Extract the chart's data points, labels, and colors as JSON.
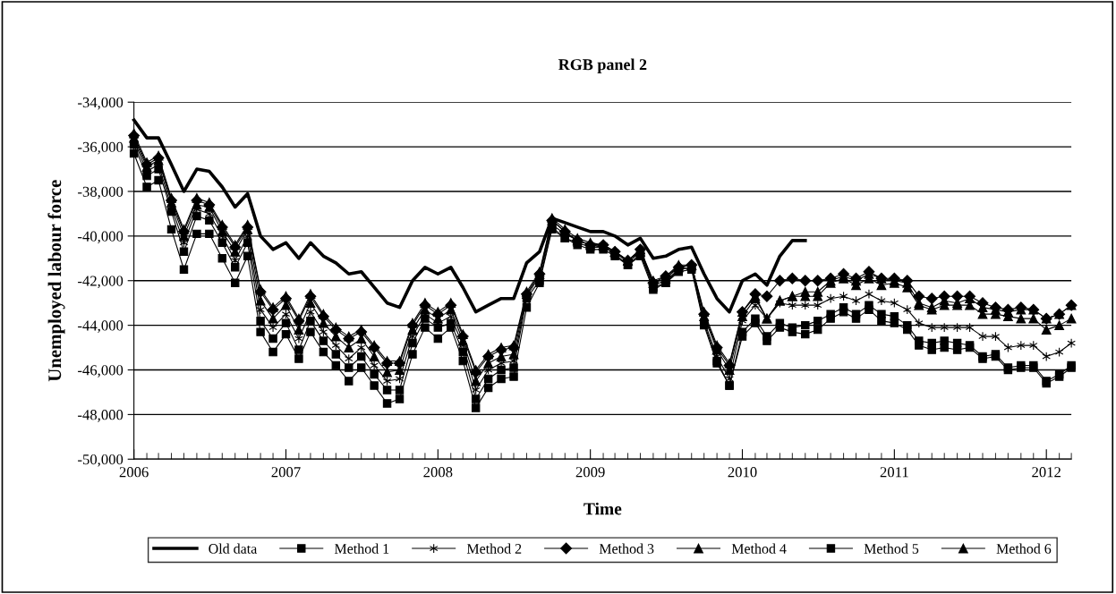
{
  "chart_data": {
    "type": "line",
    "title": "RGB panel 2",
    "xlabel": "Time",
    "ylabel": "Unemployed labour force",
    "x": [
      "2006-01",
      "2006-02",
      "2006-03",
      "2006-04",
      "2006-05",
      "2006-06",
      "2006-07",
      "2006-08",
      "2006-09",
      "2006-10",
      "2006-11",
      "2006-12",
      "2007-01",
      "2007-02",
      "2007-03",
      "2007-04",
      "2007-05",
      "2007-06",
      "2007-07",
      "2007-08",
      "2007-09",
      "2007-10",
      "2007-11",
      "2007-12",
      "2008-01",
      "2008-02",
      "2008-03",
      "2008-04",
      "2008-05",
      "2008-06",
      "2008-07",
      "2008-08",
      "2008-09",
      "2008-10",
      "2008-11",
      "2008-12",
      "2009-01",
      "2009-02",
      "2009-03",
      "2009-04",
      "2009-05",
      "2009-06",
      "2009-07",
      "2009-08",
      "2009-09",
      "2009-10",
      "2009-11",
      "2009-12",
      "2010-01",
      "2010-02",
      "2010-03",
      "2010-04",
      "2010-05",
      "2010-06",
      "2010-07",
      "2010-08",
      "2010-09",
      "2010-10",
      "2010-11",
      "2010-12",
      "2011-01",
      "2011-02",
      "2011-03",
      "2011-04",
      "2011-05",
      "2011-06",
      "2011-07",
      "2011-08",
      "2011-09",
      "2011-10",
      "2011-11",
      "2011-12",
      "2012-01",
      "2012-02",
      "2012-03"
    ],
    "series": [
      {
        "name": "Old data",
        "color": "#000000",
        "marker": "none",
        "values": [
          -34800,
          -35600,
          -35600,
          -36800,
          -38000,
          -37000,
          -37100,
          -37800,
          -38700,
          -38100,
          -40000,
          -40600,
          -40300,
          -41000,
          -40300,
          -40900,
          -41200,
          -41700,
          -41600,
          -42300,
          -43000,
          -43200,
          -42000,
          -41400,
          -41700,
          -41400,
          -42300,
          -43400,
          -43100,
          -42800,
          -42800,
          -41200,
          -40700,
          -39200,
          -39400,
          -39600,
          -39800,
          -39800,
          -40000,
          -40400,
          -40100,
          -41000,
          -40900,
          -40600,
          -40500,
          -41700,
          -42800,
          -43400,
          -42000,
          -41700,
          -42200,
          -40900,
          -40200,
          -40200,
          null,
          null,
          null,
          null,
          null,
          null,
          null,
          null,
          null,
          null,
          null,
          null,
          null,
          null,
          null,
          null,
          null,
          null,
          null,
          null,
          null
        ]
      },
      {
        "name": "Method 1",
        "color": "#000000",
        "marker": "square",
        "values": [
          -35900,
          -37300,
          -37000,
          -38900,
          -40700,
          -39100,
          -39300,
          -40300,
          -41400,
          -40300,
          -43800,
          -44600,
          -43900,
          -45100,
          -43800,
          -44700,
          -45300,
          -45900,
          -45400,
          -46200,
          -46900,
          -46900,
          -44800,
          -43700,
          -44100,
          -43900,
          -45200,
          -47300,
          -46400,
          -46000,
          -45900,
          -42800,
          -42000,
          -39600,
          -40100,
          -40300,
          -40500,
          -40500,
          -40800,
          -41300,
          -40800,
          -42300,
          -42100,
          -41500,
          -41400,
          -43900,
          -45600,
          -46700,
          -44300,
          -43700,
          -44500,
          -43900,
          -44100,
          -44000,
          -43800,
          -43500,
          -43200,
          -43500,
          -43100,
          -43500,
          -43600,
          -44000,
          -44700,
          -44800,
          -44700,
          -44800,
          -44900,
          -45400,
          -45300,
          -45900,
          -45800,
          -45800,
          -46500,
          -46200,
          -45800
        ]
      },
      {
        "name": "Method 2",
        "color": "#000000",
        "marker": "cross",
        "values": [
          -35700,
          -37100,
          -36800,
          -38700,
          -40300,
          -38800,
          -39000,
          -40000,
          -41100,
          -40000,
          -43300,
          -44100,
          -43500,
          -44600,
          -43400,
          -44300,
          -44900,
          -45500,
          -45000,
          -45800,
          -46500,
          -46400,
          -44500,
          -43500,
          -43900,
          -43600,
          -44900,
          -46900,
          -46000,
          -45700,
          -45600,
          -42700,
          -41800,
          -39500,
          -39900,
          -40200,
          -40400,
          -40500,
          -40700,
          -41200,
          -40700,
          -42200,
          -42000,
          -41500,
          -41400,
          -43800,
          -45400,
          -46400,
          -43800,
          -43100,
          -43700,
          -43000,
          -43100,
          -43100,
          -43100,
          -42800,
          -42700,
          -42900,
          -42600,
          -42900,
          -43000,
          -43300,
          -43900,
          -44100,
          -44100,
          -44100,
          -44100,
          -44500,
          -44500,
          -45000,
          -44900,
          -44900,
          -45400,
          -45200,
          -44800
        ]
      },
      {
        "name": "Method 3",
        "color": "#000000",
        "marker": "diamond",
        "values": [
          -35500,
          -36800,
          -36500,
          -38400,
          -39800,
          -38400,
          -38600,
          -39600,
          -40500,
          -39600,
          -42500,
          -43300,
          -42800,
          -43800,
          -42700,
          -43600,
          -44200,
          -44600,
          -44300,
          -45000,
          -45700,
          -45700,
          -44000,
          -43100,
          -43500,
          -43100,
          -44500,
          -46100,
          -45400,
          -45100,
          -45000,
          -42600,
          -41700,
          -39300,
          -39800,
          -40200,
          -40400,
          -40400,
          -40700,
          -41100,
          -40600,
          -42100,
          -41800,
          -41400,
          -41300,
          -43500,
          -45000,
          -45800,
          -43400,
          -42600,
          -42700,
          -42000,
          -41900,
          -42000,
          -42000,
          -41900,
          -41700,
          -41900,
          -41600,
          -41900,
          -41900,
          -42000,
          -42700,
          -42800,
          -42700,
          -42700,
          -42700,
          -43000,
          -43200,
          -43300,
          -43200,
          -43300,
          -43700,
          -43500,
          -43100
        ]
      },
      {
        "name": "Method 4",
        "color": "#000000",
        "marker": "triangle",
        "values": [
          -35600,
          -36900,
          -36600,
          -38500,
          -40000,
          -38600,
          -38700,
          -39800,
          -40700,
          -39700,
          -42900,
          -43700,
          -43100,
          -44200,
          -43000,
          -43900,
          -44500,
          -45000,
          -44600,
          -45400,
          -46100,
          -46000,
          -44200,
          -43300,
          -43700,
          -43300,
          -44700,
          -46500,
          -45700,
          -45400,
          -45300,
          -42600,
          -41700,
          -39300,
          -39800,
          -40200,
          -40400,
          -40400,
          -40700,
          -41100,
          -40700,
          -42100,
          -41900,
          -41400,
          -41300,
          -43600,
          -45100,
          -46000,
          -43600,
          -42800,
          -43700,
          -42900,
          -42700,
          -42700,
          -42700,
          -42100,
          -41900,
          -42200,
          -41900,
          -42200,
          -42100,
          -42300,
          -43100,
          -43300,
          -43100,
          -43100,
          -43100,
          -43500,
          -43500,
          -43600,
          -43700,
          -43700,
          -44200,
          -44000,
          -43700
        ]
      },
      {
        "name": "Method 5",
        "color": "#000000",
        "marker": "square",
        "values": [
          -36300,
          -37800,
          -37500,
          -39700,
          -41500,
          -39900,
          -39900,
          -41000,
          -42100,
          -40900,
          -44300,
          -45200,
          -44400,
          -45500,
          -44300,
          -45200,
          -45800,
          -46500,
          -45900,
          -46700,
          -47500,
          -47300,
          -45300,
          -44100,
          -44600,
          -44100,
          -45600,
          -47700,
          -46800,
          -46400,
          -46300,
          -43200,
          -42100,
          -39700,
          -40100,
          -40400,
          -40600,
          -40600,
          -40900,
          -41300,
          -40900,
          -42400,
          -42100,
          -41600,
          -41500,
          -44000,
          -45700,
          -46700,
          -44500,
          -43900,
          -44700,
          -44100,
          -44300,
          -44400,
          -44200,
          -43700,
          -43400,
          -43700,
          -43300,
          -43800,
          -43900,
          -44200,
          -44900,
          -45100,
          -45000,
          -45100,
          -45000,
          -45500,
          -45400,
          -46000,
          -45900,
          -45900,
          -46600,
          -46300,
          -45900
        ]
      },
      {
        "name": "Method 6",
        "color": "#000000",
        "marker": "triangle",
        "values": [
          -35400,
          -36700,
          -36400,
          -38300,
          -39700,
          -38300,
          -38500,
          -39500,
          -40400,
          -39500,
          -42400,
          -43200,
          -42700,
          -43700,
          -42600,
          -43500,
          -44100,
          -44500,
          -44200,
          -44900,
          -45600,
          -45600,
          -43900,
          -43000,
          -43400,
          -43000,
          -44400,
          -46000,
          -45300,
          -45000,
          -44900,
          -42500,
          -41600,
          -39200,
          -39700,
          -40100,
          -40300,
          -40400,
          -40700,
          -41100,
          -40600,
          -42000,
          -41800,
          -41300,
          -41300,
          -43400,
          -44900,
          -45700,
          -43400,
          -42700,
          -43700,
          -42900,
          -42700,
          -42500,
          -42500,
          -42000,
          -41800,
          -42000,
          -41700,
          -41900,
          -42000,
          -42100,
          -43000,
          -43200,
          -42900,
          -43000,
          -42800,
          -43200,
          -43300,
          -43400,
          -43300,
          -43300,
          -43700,
          -43500,
          -43100
        ]
      }
    ],
    "xlim": [
      "2006-01",
      "2012-03"
    ],
    "xticks": [
      {
        "value": "2006-01",
        "label": "2006"
      },
      {
        "value": "2007-01",
        "label": "2007"
      },
      {
        "value": "2008-01",
        "label": "2008"
      },
      {
        "value": "2009-01",
        "label": "2009"
      },
      {
        "value": "2010-01",
        "label": "2010"
      },
      {
        "value": "2011-01",
        "label": "2011"
      },
      {
        "value": "2012-01",
        "label": "2012"
      }
    ],
    "ylim": [
      -50000,
      -34000
    ],
    "yticks": [
      {
        "value": -50000,
        "label": "-50,000"
      },
      {
        "value": -48000,
        "label": "-48,000"
      },
      {
        "value": -46000,
        "label": "-46,000"
      },
      {
        "value": -44000,
        "label": "-44,000"
      },
      {
        "value": -42000,
        "label": "-42,000"
      },
      {
        "value": -40000,
        "label": "-40,000"
      },
      {
        "value": -38000,
        "label": "-38,000"
      },
      {
        "value": -36000,
        "label": "-36,000"
      },
      {
        "value": -34000,
        "label": "-34,000"
      }
    ],
    "grid": "y",
    "legend": "bottom",
    "line_style": "solid"
  }
}
